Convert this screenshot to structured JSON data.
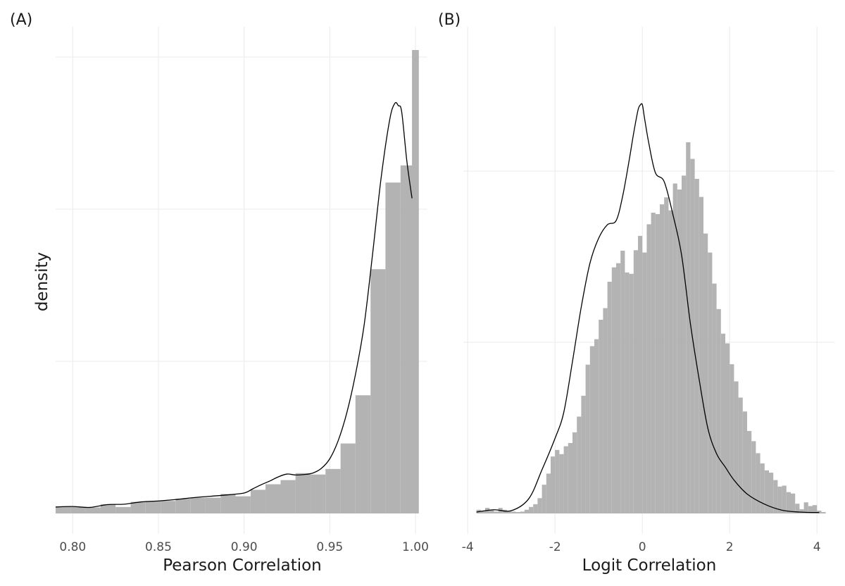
{
  "figure": {
    "ylabel": "density",
    "colors": {
      "bars": "#b3b3b3",
      "density": "#000000",
      "grid": "#ebebeb",
      "text": "#4d4d4d"
    }
  },
  "chart_data": [
    {
      "tag": "(A)",
      "type": "bar",
      "title": "",
      "xlabel": "Pearson Correlation",
      "ylabel": "density",
      "xlim": [
        0.79,
        1.007
      ],
      "ylim": [
        0,
        1
      ],
      "xticks": [
        0.8,
        0.85,
        0.9,
        0.95,
        1.0
      ],
      "xtick_labels": [
        "0.80",
        "0.85",
        "0.90",
        "0.95",
        "1.00"
      ],
      "y_tick_labels_shown": false,
      "grid": true,
      "bins": [
        [
          0.79,
          0.7988,
          0.015
        ],
        [
          0.7988,
          0.8075,
          0.014
        ],
        [
          0.8075,
          0.8163,
          0.013
        ],
        [
          0.8163,
          0.825,
          0.02
        ],
        [
          0.825,
          0.8338,
          0.014
        ],
        [
          0.8338,
          0.8425,
          0.025
        ],
        [
          0.8425,
          0.8513,
          0.027
        ],
        [
          0.8513,
          0.86,
          0.027
        ],
        [
          0.86,
          0.8688,
          0.032
        ],
        [
          0.8688,
          0.8775,
          0.034
        ],
        [
          0.8775,
          0.8863,
          0.034
        ],
        [
          0.8863,
          0.895,
          0.042
        ],
        [
          0.895,
          0.9038,
          0.037
        ],
        [
          0.9038,
          0.9125,
          0.051
        ],
        [
          0.9125,
          0.9213,
          0.063
        ],
        [
          0.9213,
          0.93,
          0.072
        ],
        [
          0.93,
          0.9388,
          0.087
        ],
        [
          0.9388,
          0.9475,
          0.084
        ],
        [
          0.9475,
          0.9563,
          0.096
        ],
        [
          0.9563,
          0.965,
          0.151
        ],
        [
          0.965,
          0.9738,
          0.255
        ],
        [
          0.9738,
          0.9825,
          0.527
        ],
        [
          0.9825,
          0.9913,
          0.714
        ],
        [
          0.9913,
          1.0,
          0.751
        ],
        [
          0.998,
          1.002,
          1.0
        ]
      ],
      "density_curve": {
        "x": [
          0.79,
          0.8,
          0.81,
          0.82,
          0.83,
          0.84,
          0.85,
          0.86,
          0.87,
          0.88,
          0.89,
          0.9,
          0.905,
          0.91,
          0.915,
          0.92,
          0.925,
          0.93,
          0.935,
          0.94,
          0.945,
          0.95,
          0.955,
          0.96,
          0.965,
          0.97,
          0.975,
          0.98,
          0.985,
          0.988,
          0.99,
          0.992,
          0.995,
          0.998
        ],
        "y": [
          0.014,
          0.015,
          0.013,
          0.019,
          0.02,
          0.025,
          0.027,
          0.03,
          0.034,
          0.037,
          0.04,
          0.044,
          0.053,
          0.062,
          0.07,
          0.079,
          0.085,
          0.083,
          0.084,
          0.087,
          0.097,
          0.118,
          0.158,
          0.218,
          0.3,
          0.405,
          0.56,
          0.725,
          0.85,
          0.885,
          0.88,
          0.866,
          0.76,
          0.68
        ]
      }
    },
    {
      "tag": "(B)",
      "type": "bar",
      "title": "",
      "xlabel": "Logit Correlation",
      "ylabel": "",
      "xlim": [
        -4.1,
        4.4
      ],
      "ylim": [
        0,
        1
      ],
      "xticks": [
        -4,
        -2,
        0,
        2,
        4
      ],
      "xtick_labels": [
        "-4",
        "-2",
        "0",
        "2",
        "4"
      ],
      "y_tick_labels_shown": false,
      "grid": true,
      "bin_start": -3.8,
      "bin_width": 0.1,
      "bin_values": [
        0.008,
        0.005,
        0.012,
        0.008,
        0.004,
        0.012,
        0.008,
        0.006,
        0.004,
        0.003,
        0.004,
        0.008,
        0.014,
        0.02,
        0.033,
        0.062,
        0.086,
        0.123,
        0.137,
        0.128,
        0.145,
        0.152,
        0.175,
        0.209,
        0.254,
        0.321,
        0.361,
        0.376,
        0.418,
        0.443,
        0.5,
        0.531,
        0.54,
        0.567,
        0.52,
        0.517,
        0.568,
        0.599,
        0.563,
        0.624,
        0.649,
        0.646,
        0.667,
        0.682,
        0.654,
        0.712,
        0.699,
        0.729,
        0.801,
        0.765,
        0.722,
        0.683,
        0.604,
        0.563,
        0.496,
        0.441,
        0.388,
        0.367,
        0.322,
        0.285,
        0.25,
        0.22,
        0.178,
        0.156,
        0.13,
        0.108,
        0.093,
        0.088,
        0.072,
        0.058,
        0.06,
        0.046,
        0.043,
        0.021,
        0.009,
        0.024,
        0.016,
        0.018,
        0.006,
        0.003
      ],
      "density_curve": {
        "x": [
          -3.8,
          -3.4,
          -3.0,
          -2.6,
          -2.3,
          -2.0,
          -1.8,
          -1.6,
          -1.4,
          -1.2,
          -1.0,
          -0.8,
          -0.6,
          -0.45,
          -0.3,
          -0.2,
          -0.1,
          -0.05,
          0.0,
          0.05,
          0.15,
          0.3,
          0.5,
          0.7,
          0.9,
          1.1,
          1.3,
          1.5,
          1.7,
          1.9,
          2.1,
          2.4,
          2.8,
          3.2,
          3.6,
          4.05
        ],
        "y": [
          0.003,
          0.008,
          0.006,
          0.032,
          0.094,
          0.162,
          0.218,
          0.328,
          0.445,
          0.54,
          0.594,
          0.623,
          0.632,
          0.685,
          0.763,
          0.82,
          0.87,
          0.881,
          0.882,
          0.853,
          0.798,
          0.735,
          0.716,
          0.645,
          0.557,
          0.41,
          0.29,
          0.184,
          0.129,
          0.1,
          0.072,
          0.042,
          0.02,
          0.007,
          0.003,
          0.002
        ]
      }
    }
  ]
}
